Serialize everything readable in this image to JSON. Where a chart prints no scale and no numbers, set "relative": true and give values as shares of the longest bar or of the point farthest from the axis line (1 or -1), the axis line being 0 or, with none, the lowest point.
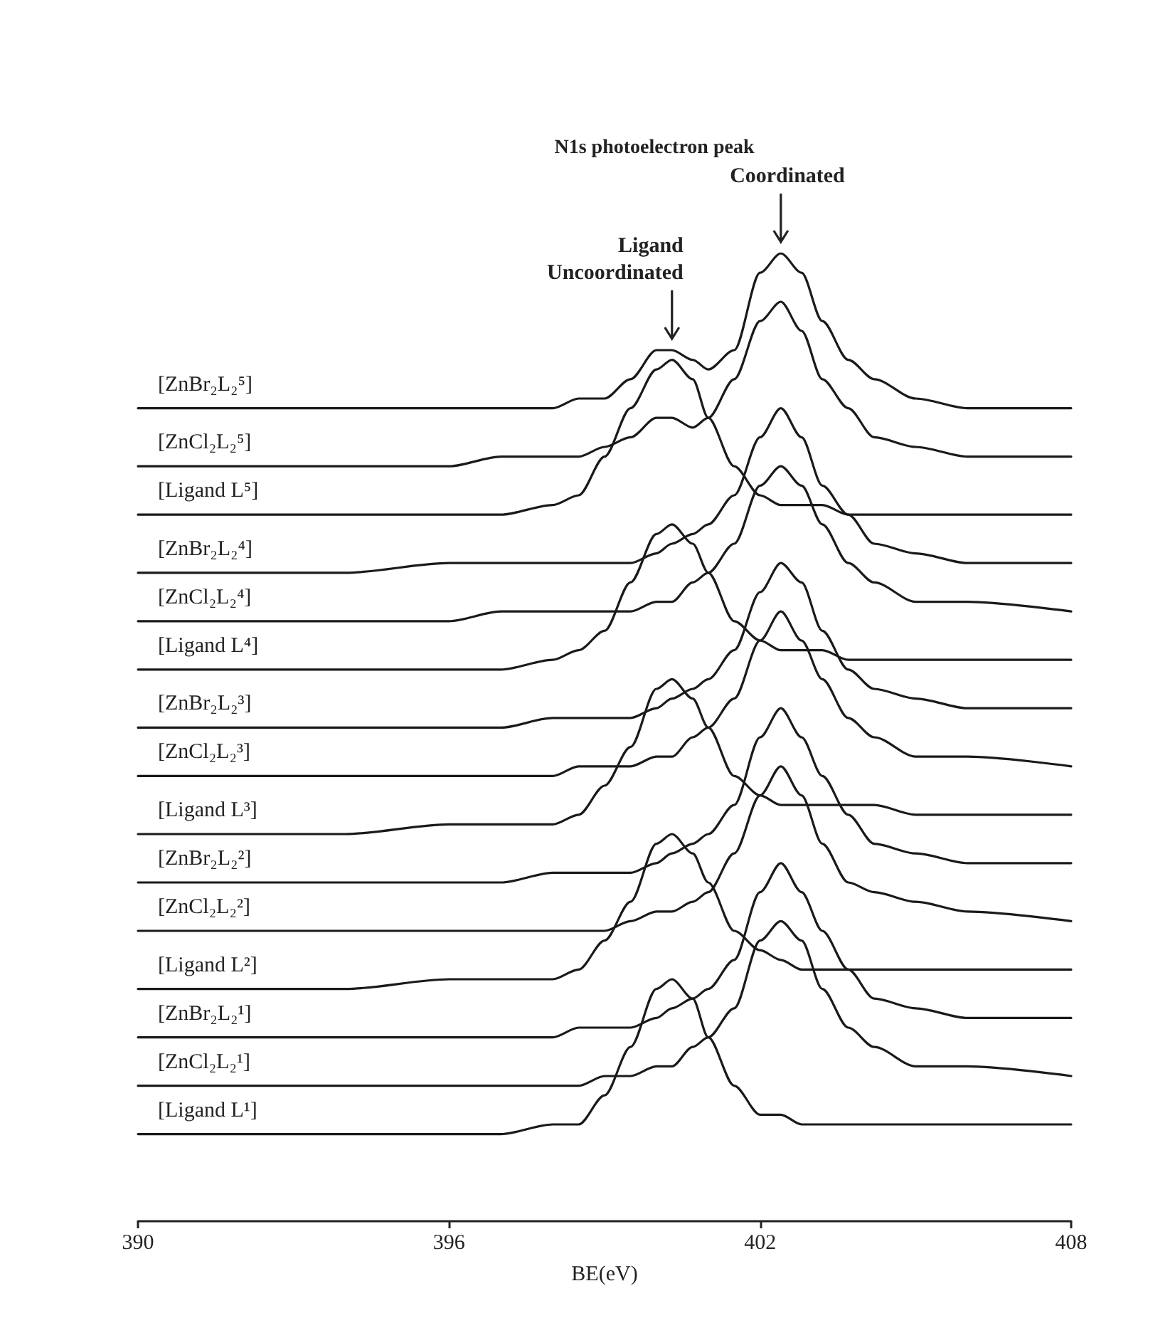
{
  "chart_data": {
    "type": "line",
    "title": "N1s photoelectron peak",
    "xlabel": "BE(eV)",
    "relative": true,
    "xlim": [
      390,
      408
    ],
    "xticks": [
      390,
      396,
      402,
      408
    ],
    "annotations": [
      {
        "text": "Ligand\nUncoordinated",
        "x": 400.3,
        "y": 0.9
      },
      {
        "text": "Coordinated",
        "x": 402.4,
        "y": 1.0
      }
    ],
    "x": [
      390,
      394,
      396,
      397,
      398,
      398.5,
      399,
      399.5,
      400,
      400.3,
      400.7,
      401,
      401.5,
      402,
      402.4,
      402.8,
      403.2,
      403.7,
      404.2,
      405,
      406,
      408
    ],
    "series": [
      {
        "name": "[ZnBr₂L₂⁵]",
        "color": "#1a1a1a",
        "values": [
          0.84,
          0.84,
          0.84,
          0.84,
          0.84,
          0.85,
          0.85,
          0.87,
          0.9,
          0.9,
          0.89,
          0.88,
          0.9,
          0.98,
          1.0,
          0.98,
          0.93,
          0.89,
          0.87,
          0.85,
          0.84,
          0.84
        ]
      },
      {
        "name": "[ZnCl₂L₂⁵]",
        "color": "#1a1a1a",
        "values": [
          0.78,
          0.78,
          0.78,
          0.79,
          0.79,
          0.79,
          0.8,
          0.81,
          0.83,
          0.83,
          0.82,
          0.83,
          0.87,
          0.93,
          0.95,
          0.92,
          0.87,
          0.84,
          0.81,
          0.8,
          0.79,
          0.79
        ]
      },
      {
        "name": "[Ligand L⁵]",
        "color": "#1a1a1a",
        "values": [
          0.73,
          0.73,
          0.73,
          0.73,
          0.74,
          0.75,
          0.79,
          0.84,
          0.88,
          0.89,
          0.87,
          0.83,
          0.78,
          0.75,
          0.74,
          0.74,
          0.74,
          0.73,
          0.73,
          0.73,
          0.73,
          0.73
        ]
      },
      {
        "name": "[ZnBr₂L₂⁴]",
        "color": "#1a1a1a",
        "values": [
          0.67,
          0.67,
          0.68,
          0.68,
          0.68,
          0.68,
          0.68,
          0.68,
          0.69,
          0.7,
          0.71,
          0.72,
          0.75,
          0.81,
          0.84,
          0.81,
          0.76,
          0.73,
          0.7,
          0.69,
          0.68,
          0.68
        ]
      },
      {
        "name": "[ZnCl₂L₂⁴]",
        "color": "#1a1a1a",
        "values": [
          0.62,
          0.62,
          0.62,
          0.63,
          0.63,
          0.63,
          0.63,
          0.63,
          0.64,
          0.64,
          0.66,
          0.67,
          0.7,
          0.76,
          0.78,
          0.76,
          0.72,
          0.68,
          0.66,
          0.64,
          0.64,
          0.63
        ]
      },
      {
        "name": "[Ligand L⁴]",
        "color": "#1a1a1a",
        "values": [
          0.57,
          0.57,
          0.57,
          0.57,
          0.58,
          0.59,
          0.61,
          0.66,
          0.71,
          0.72,
          0.7,
          0.67,
          0.62,
          0.6,
          0.59,
          0.59,
          0.59,
          0.58,
          0.58,
          0.58,
          0.58,
          0.58
        ]
      },
      {
        "name": "[ZnBr₂L₂³]",
        "color": "#1a1a1a",
        "values": [
          0.51,
          0.51,
          0.51,
          0.51,
          0.52,
          0.52,
          0.52,
          0.52,
          0.53,
          0.54,
          0.55,
          0.56,
          0.59,
          0.65,
          0.68,
          0.66,
          0.61,
          0.57,
          0.55,
          0.54,
          0.53,
          0.53
        ]
      },
      {
        "name": "[ZnCl₂L₂³]",
        "color": "#1a1a1a",
        "values": [
          0.46,
          0.46,
          0.46,
          0.46,
          0.46,
          0.47,
          0.47,
          0.47,
          0.48,
          0.48,
          0.5,
          0.51,
          0.54,
          0.6,
          0.63,
          0.6,
          0.56,
          0.52,
          0.5,
          0.48,
          0.48,
          0.47
        ]
      },
      {
        "name": "[Ligand L³]",
        "color": "#1a1a1a",
        "values": [
          0.4,
          0.4,
          0.41,
          0.41,
          0.41,
          0.42,
          0.45,
          0.49,
          0.55,
          0.56,
          0.54,
          0.51,
          0.46,
          0.44,
          0.43,
          0.43,
          0.43,
          0.43,
          0.43,
          0.42,
          0.42,
          0.42
        ]
      },
      {
        "name": "[ZnBr₂L₂²]",
        "color": "#1a1a1a",
        "values": [
          0.35,
          0.35,
          0.35,
          0.35,
          0.36,
          0.36,
          0.36,
          0.36,
          0.37,
          0.38,
          0.39,
          0.4,
          0.43,
          0.5,
          0.53,
          0.5,
          0.46,
          0.42,
          0.39,
          0.38,
          0.37,
          0.37
        ]
      },
      {
        "name": "[ZnCl₂L₂²]",
        "color": "#1a1a1a",
        "values": [
          0.3,
          0.3,
          0.3,
          0.3,
          0.3,
          0.3,
          0.3,
          0.31,
          0.32,
          0.32,
          0.33,
          0.34,
          0.38,
          0.44,
          0.47,
          0.44,
          0.39,
          0.35,
          0.34,
          0.33,
          0.32,
          0.31
        ]
      },
      {
        "name": "[Ligand L²]",
        "color": "#1a1a1a",
        "values": [
          0.24,
          0.24,
          0.25,
          0.25,
          0.25,
          0.26,
          0.29,
          0.33,
          0.39,
          0.4,
          0.38,
          0.35,
          0.3,
          0.28,
          0.27,
          0.26,
          0.26,
          0.26,
          0.26,
          0.26,
          0.26,
          0.26
        ]
      },
      {
        "name": "[ZnBr₂L₂¹]",
        "color": "#1a1a1a",
        "values": [
          0.19,
          0.19,
          0.19,
          0.19,
          0.19,
          0.2,
          0.2,
          0.2,
          0.21,
          0.22,
          0.23,
          0.24,
          0.27,
          0.34,
          0.37,
          0.34,
          0.3,
          0.26,
          0.23,
          0.22,
          0.21,
          0.21
        ]
      },
      {
        "name": "[ZnCl₂L₂¹]",
        "color": "#1a1a1a",
        "values": [
          0.14,
          0.14,
          0.14,
          0.14,
          0.14,
          0.14,
          0.15,
          0.15,
          0.16,
          0.16,
          0.18,
          0.19,
          0.22,
          0.29,
          0.31,
          0.29,
          0.24,
          0.2,
          0.18,
          0.16,
          0.16,
          0.15
        ]
      },
      {
        "name": "[Ligand L¹]",
        "color": "#1a1a1a",
        "values": [
          0.09,
          0.09,
          0.09,
          0.09,
          0.1,
          0.1,
          0.13,
          0.18,
          0.24,
          0.25,
          0.23,
          0.19,
          0.14,
          0.11,
          0.11,
          0.1,
          0.1,
          0.1,
          0.1,
          0.1,
          0.1,
          0.1
        ]
      }
    ]
  }
}
